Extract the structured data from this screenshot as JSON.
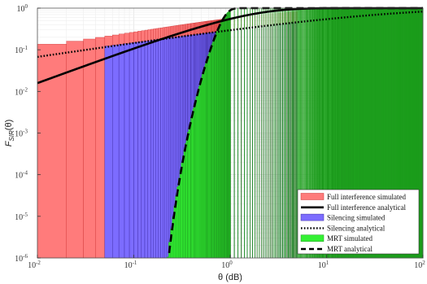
{
  "chart_data": {
    "type": "bar",
    "xlabel": "θ (dB)",
    "ylabel": "F_SIR(θ)",
    "ylabel_main": "F",
    "ylabel_sub": "SIR",
    "ylabel_tail": "(θ)",
    "x_scale": "log",
    "y_scale": "log",
    "xlim": [
      0.01,
      100
    ],
    "ylim": [
      1e-06,
      1
    ],
    "grid": true,
    "legend_position": "bottom-right",
    "x_ticks": [
      {
        "value": 0.01,
        "base": "10",
        "exp": "-2"
      },
      {
        "value": 0.1,
        "base": "10",
        "exp": "-1"
      },
      {
        "value": 1,
        "base": "10",
        "exp": "0"
      },
      {
        "value": 10,
        "base": "10",
        "exp": "1"
      },
      {
        "value": 100,
        "base": "10",
        "exp": "2"
      }
    ],
    "y_ticks": [
      {
        "value": 1e-06,
        "base": "10",
        "exp": "-6"
      },
      {
        "value": 1e-05,
        "base": "10",
        "exp": "-5"
      },
      {
        "value": 0.0001,
        "base": "10",
        "exp": "-4"
      },
      {
        "value": 0.001,
        "base": "10",
        "exp": "-3"
      },
      {
        "value": 0.01,
        "base": "10",
        "exp": "-2"
      },
      {
        "value": 0.1,
        "base": "10",
        "exp": "-1"
      },
      {
        "value": 1,
        "base": "10",
        "exp": "0"
      }
    ],
    "series": [
      {
        "name": "Full interference simulated",
        "style": "histogram",
        "color": "#ff7b7b",
        "edge": "#cc3333",
        "start": 0.01,
        "end": 5,
        "bin_width": 0.01,
        "model": {
          "a": 0.45,
          "K": 0.85
        }
      },
      {
        "name": "Full interference analytical",
        "style": "solid",
        "color": "#000000",
        "model": {
          "a": 0.85,
          "K": 0.8
        }
      },
      {
        "name": "Silencing simulated",
        "style": "histogram",
        "color": "#7c6cff",
        "edge": "#3a2aa0",
        "start": 0.05,
        "end": 5,
        "bin_width": 0.01,
        "model": {
          "a": 0.35,
          "K": 0.35
        }
      },
      {
        "name": "Silencing analytical",
        "style": "dotted",
        "color": "#000000",
        "model": {
          "a": 0.35,
          "K": 0.35
        }
      },
      {
        "name": "MRT simulated",
        "style": "histogram",
        "color": "#33f033",
        "edge": "#1d9a1d",
        "start": 0.13,
        "end": 100,
        "bin_width": 0.01,
        "model": {
          "x0": 0.13,
          "b": 11.4,
          "K": 8.5,
          "c": 1.7
        }
      },
      {
        "name": "MRT analytical",
        "style": "dashed",
        "color": "#000000",
        "model": {
          "x0": 0.13,
          "b": 11.4,
          "K": 8.5,
          "c": 1.7
        }
      }
    ]
  }
}
